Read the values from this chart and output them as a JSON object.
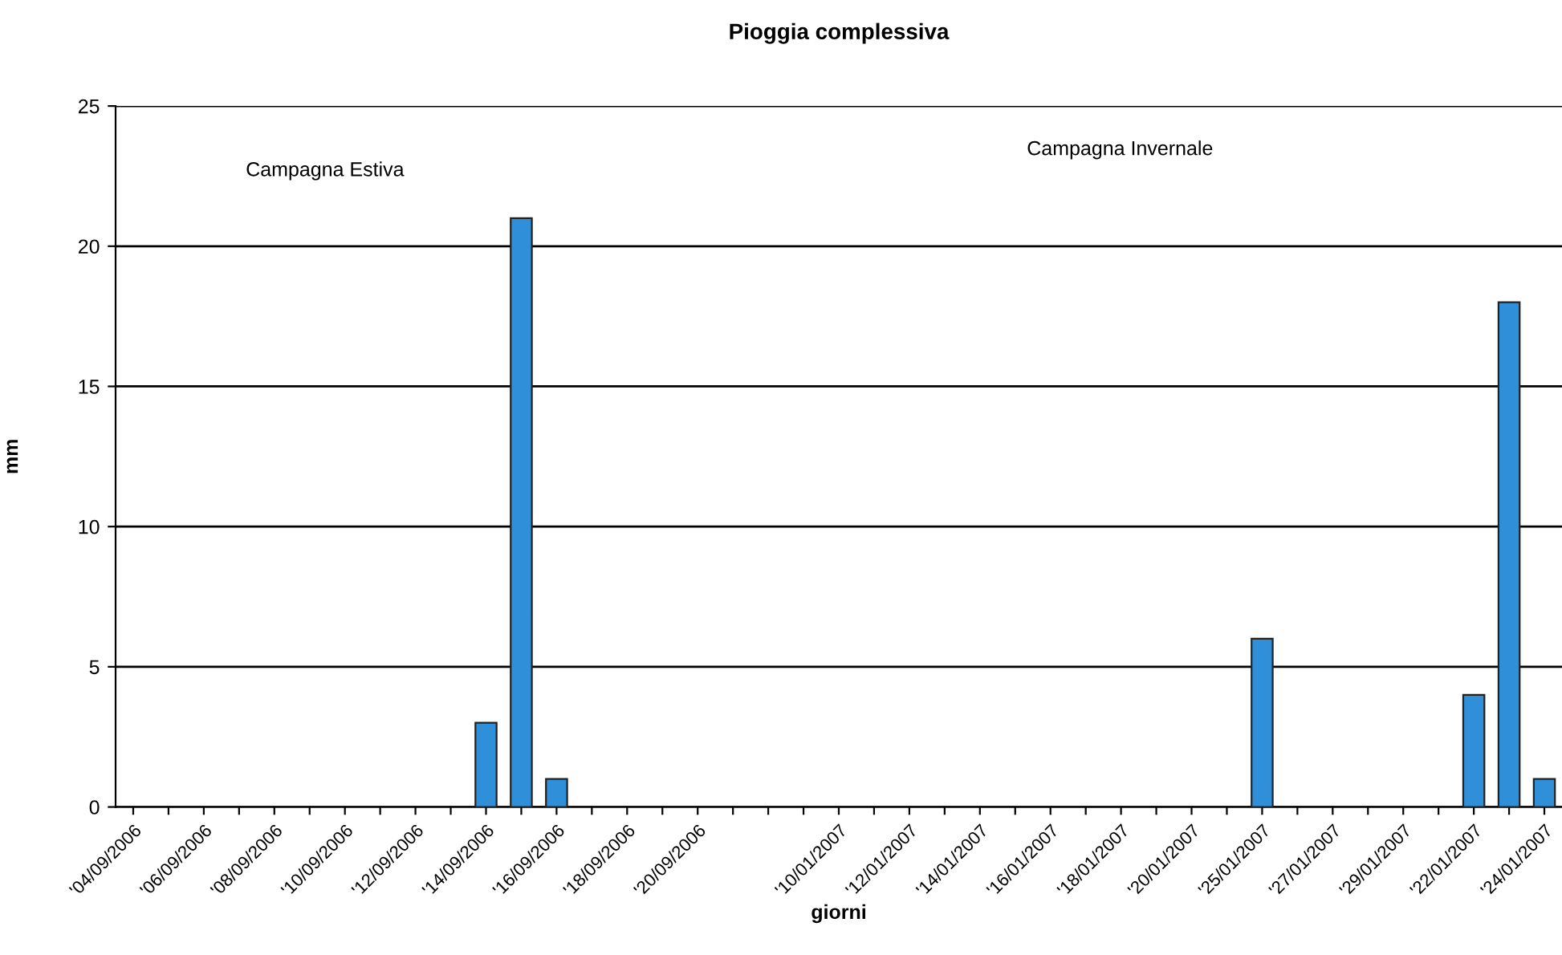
{
  "chart_data": {
    "type": "bar",
    "title": "Pioggia complessiva",
    "xlabel": "giorni",
    "ylabel": "mm",
    "categories": [
      "'04/09/2006",
      null,
      "'06/09/2006",
      null,
      "'08/09/2006",
      null,
      "'10/09/2006",
      null,
      "'12/09/2006",
      null,
      "'14/09/2006",
      null,
      "'16/09/2006",
      null,
      "'18/09/2006",
      null,
      "'20/09/2006",
      null,
      null,
      null,
      "'10/01/2007",
      null,
      "'12/01/2007",
      null,
      "'14/01/2007",
      null,
      "'16/01/2007",
      null,
      "'18/01/2007",
      null,
      "'20/01/2007",
      null,
      "'25/01/2007",
      null,
      "'27/01/2007",
      null,
      "'29/01/2007",
      null,
      "'22/01/2007",
      null,
      "'24/01/2007"
    ],
    "values": [
      0,
      0,
      0,
      0,
      0,
      0,
      0,
      0,
      0,
      0,
      3,
      21,
      1,
      0,
      0,
      0,
      0,
      0,
      0,
      0,
      0,
      0,
      0,
      0,
      0,
      0,
      0,
      0,
      0,
      0,
      0,
      0,
      6,
      0,
      0,
      0,
      0,
      0,
      4,
      18,
      1
    ],
    "color": "#2f8fd8",
    "ylim": [
      0,
      25
    ],
    "yticks": [
      0,
      5,
      10,
      15,
      20,
      25
    ],
    "grid": "y",
    "annotations": [
      "Campagna Estiva",
      "Campagna Invernale"
    ]
  }
}
